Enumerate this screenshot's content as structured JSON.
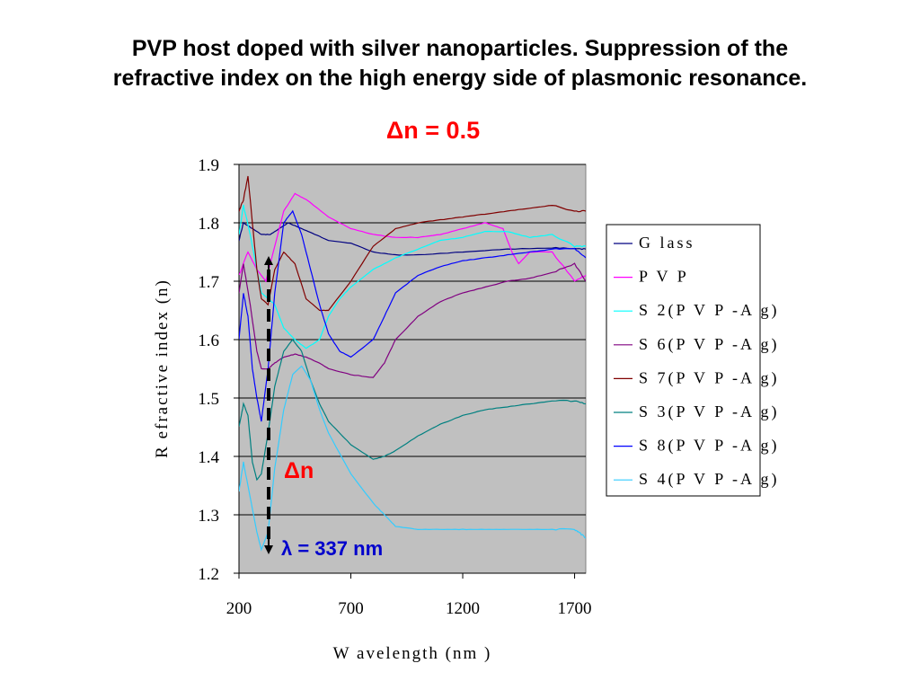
{
  "slide": {
    "title_line1": "PVP host doped with silver nanoparticles. Suppression of the",
    "title_line2": "refractive index on the high energy side of plasmonic resonance.",
    "delta_heading": "Δn = 0.5"
  },
  "annotations": {
    "delta_n": "Δn",
    "lambda": "λ = 337 nm"
  },
  "colors": {
    "plot_bg": "#c0c0c0",
    "gridline": "#000000",
    "arrow": "#000000",
    "title_red": "#ff0000",
    "lambda_blue": "#0000cc"
  },
  "chart_data": {
    "type": "line",
    "title": "",
    "xlabel": "W avelength (nm )",
    "ylabel": "R efractive index (n)",
    "xlim": [
      200,
      1750
    ],
    "ylim": [
      1.2,
      1.9
    ],
    "x_ticks": [
      200,
      700,
      1200,
      1700
    ],
    "y_ticks": [
      1.2,
      1.3,
      1.4,
      1.5,
      1.6,
      1.7,
      1.8,
      1.9
    ],
    "x_tick_labels": [
      "200",
      "700",
      "1200",
      "1700"
    ],
    "y_tick_labels": [
      "1.2",
      "1.3",
      "1.4",
      "1.5",
      "1.6",
      "1.7",
      "1.8",
      "1.9"
    ],
    "grid": "horizontal",
    "legend_position": "right",
    "series": [
      {
        "name": "G lass",
        "color": "#000080",
        "x": [
          200,
          220,
          260,
          300,
          340,
          380,
          420,
          480,
          540,
          600,
          700,
          800,
          900,
          1000,
          1200,
          1400,
          1600,
          1700,
          1750
        ],
        "y": [
          1.77,
          1.8,
          1.79,
          1.78,
          1.78,
          1.79,
          1.8,
          1.79,
          1.78,
          1.77,
          1.765,
          1.75,
          1.745,
          1.745,
          1.75,
          1.755,
          1.757,
          1.755,
          1.755
        ]
      },
      {
        "name": "P V P",
        "color": "#ff00ff",
        "x": [
          200,
          240,
          280,
          320,
          360,
          400,
          450,
          500,
          600,
          700,
          800,
          900,
          1000,
          1100,
          1200,
          1300,
          1380,
          1420,
          1450,
          1500,
          1600,
          1700,
          1750
        ],
        "y": [
          1.71,
          1.75,
          1.72,
          1.7,
          1.76,
          1.82,
          1.85,
          1.84,
          1.81,
          1.79,
          1.78,
          1.775,
          1.775,
          1.78,
          1.79,
          1.8,
          1.79,
          1.75,
          1.73,
          1.75,
          1.75,
          1.7,
          1.71
        ]
      },
      {
        "name": "S 2(P V P -A g)",
        "color": "#00ffff",
        "x": [
          200,
          220,
          250,
          280,
          300,
          330,
          360,
          400,
          450,
          500,
          560,
          600,
          650,
          700,
          800,
          900,
          1000,
          1100,
          1200,
          1300,
          1400,
          1500,
          1600,
          1700,
          1750
        ],
        "y": [
          1.78,
          1.83,
          1.78,
          1.72,
          1.68,
          1.67,
          1.66,
          1.62,
          1.6,
          1.585,
          1.6,
          1.64,
          1.67,
          1.69,
          1.72,
          1.74,
          1.755,
          1.77,
          1.775,
          1.785,
          1.785,
          1.775,
          1.78,
          1.76,
          1.76
        ]
      },
      {
        "name": "S 6(P V P -A g)",
        "color": "#800080",
        "x": [
          200,
          220,
          250,
          280,
          300,
          330,
          360,
          400,
          450,
          500,
          560,
          600,
          700,
          800,
          850,
          900,
          1000,
          1100,
          1200,
          1300,
          1400,
          1500,
          1600,
          1700,
          1750
        ],
        "y": [
          1.68,
          1.73,
          1.66,
          1.58,
          1.55,
          1.55,
          1.56,
          1.57,
          1.575,
          1.57,
          1.56,
          1.55,
          1.54,
          1.535,
          1.56,
          1.6,
          1.64,
          1.665,
          1.68,
          1.69,
          1.7,
          1.705,
          1.715,
          1.73,
          1.7
        ]
      },
      {
        "name": "S 7(P V P -A g)",
        "color": "#800000",
        "x": [
          200,
          220,
          240,
          260,
          280,
          300,
          330,
          360,
          400,
          450,
          500,
          560,
          600,
          700,
          800,
          900,
          1000,
          1100,
          1200,
          1300,
          1400,
          1500,
          1600,
          1700,
          1750
        ],
        "y": [
          1.82,
          1.84,
          1.88,
          1.8,
          1.72,
          1.67,
          1.66,
          1.72,
          1.75,
          1.73,
          1.67,
          1.65,
          1.65,
          1.7,
          1.76,
          1.79,
          1.8,
          1.805,
          1.81,
          1.815,
          1.82,
          1.825,
          1.83,
          1.82,
          1.82
        ]
      },
      {
        "name": "S 3(P V P -A g)",
        "color": "#008080",
        "x": [
          200,
          220,
          240,
          260,
          280,
          300,
          330,
          360,
          400,
          440,
          480,
          520,
          560,
          600,
          700,
          800,
          850,
          900,
          1000,
          1100,
          1200,
          1300,
          1400,
          1500,
          1600,
          1700,
          1750
        ],
        "y": [
          1.45,
          1.49,
          1.47,
          1.39,
          1.36,
          1.37,
          1.44,
          1.52,
          1.58,
          1.6,
          1.58,
          1.53,
          1.49,
          1.46,
          1.42,
          1.395,
          1.4,
          1.41,
          1.435,
          1.455,
          1.47,
          1.48,
          1.485,
          1.49,
          1.495,
          1.495,
          1.49
        ]
      },
      {
        "name": "S 8(P V P -A g)",
        "color": "#0000ff",
        "x": [
          200,
          220,
          240,
          260,
          280,
          300,
          330,
          360,
          400,
          440,
          480,
          520,
          560,
          600,
          650,
          700,
          800,
          850,
          900,
          1000,
          1100,
          1200,
          1300,
          1400,
          1500,
          1600,
          1700,
          1750
        ],
        "y": [
          1.6,
          1.68,
          1.64,
          1.55,
          1.5,
          1.46,
          1.55,
          1.68,
          1.8,
          1.82,
          1.78,
          1.72,
          1.66,
          1.61,
          1.58,
          1.57,
          1.6,
          1.64,
          1.68,
          1.71,
          1.725,
          1.735,
          1.74,
          1.745,
          1.75,
          1.755,
          1.755,
          1.74
        ]
      },
      {
        "name": "S 4(P V P -A g)",
        "color": "#33ccff",
        "x": [
          200,
          220,
          250,
          280,
          300,
          330,
          360,
          400,
          440,
          480,
          520,
          560,
          600,
          700,
          800,
          850,
          900,
          1000,
          1100,
          1200,
          1300,
          1400,
          1500,
          1600,
          1700,
          1720,
          1750
        ],
        "y": [
          1.34,
          1.39,
          1.33,
          1.27,
          1.24,
          1.27,
          1.38,
          1.48,
          1.54,
          1.555,
          1.53,
          1.48,
          1.44,
          1.37,
          1.32,
          1.3,
          1.28,
          1.275,
          1.275,
          1.275,
          1.275,
          1.275,
          1.275,
          1.275,
          1.275,
          1.27,
          1.26
        ]
      }
    ]
  }
}
